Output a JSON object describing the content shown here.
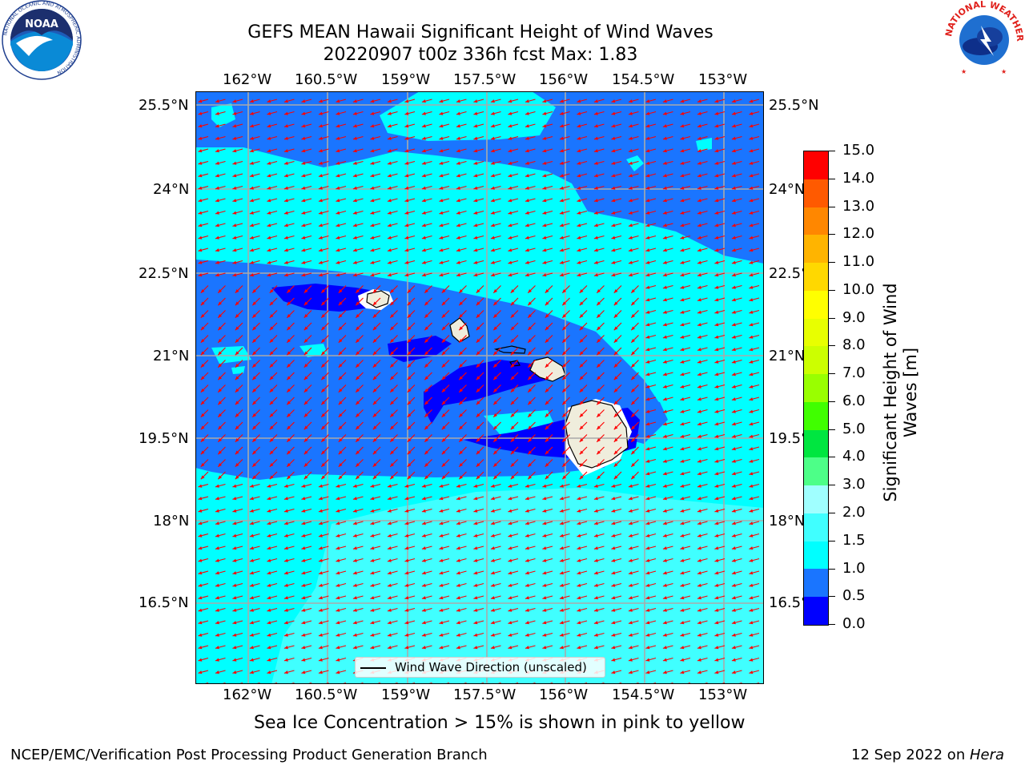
{
  "title": {
    "line1": "GEFS MEAN Hawaii Significant Height of Wind Waves",
    "line2": "20220907 t00z 336h fcst   Max: 1.83"
  },
  "map": {
    "lon_labels": [
      "162°W",
      "160.5°W",
      "159°W",
      "157.5°W",
      "156°W",
      "154.5°W",
      "153°W"
    ],
    "lat_labels": [
      "25.5°N",
      "24°N",
      "22.5°N",
      "21°N",
      "19.5°N",
      "18°N",
      "16.5°N"
    ],
    "legend_label": "Wind Wave Direction (unscaled)",
    "colors": {
      "ocean_bg": "#00ffff",
      "band_1_0": "#1a75ff",
      "band_0_5": "#0000ff",
      "band_2_0": "#40ffff",
      "land": "#efeddc",
      "arrows": "#ff0000"
    }
  },
  "colorbar": {
    "title": "Significant Height of Wind Waves [m]",
    "title_line1": "Significant Height of Wind",
    "title_line2": "Waves [m]",
    "ticks": [
      "15.0",
      "14.0",
      "13.0",
      "12.0",
      "11.0",
      "10.0",
      "9.0",
      "8.0",
      "7.0",
      "6.0",
      "5.0",
      "4.0",
      "3.0",
      "2.0",
      "1.5",
      "1.0",
      "0.5",
      "0.0"
    ],
    "colors": [
      "#ff0000",
      "#ff2d00",
      "#ff5a00",
      "#ff8700",
      "#ffb400",
      "#ffd800",
      "#ffff00",
      "#e8ff00",
      "#ccff00",
      "#99ff00",
      "#40ff00",
      "#00e640",
      "#4dff88",
      "#a0ffff",
      "#40ffff",
      "#00ffff",
      "#1a75ff",
      "#0000ff"
    ]
  },
  "caption": "Sea Ice Concentration > 15% is shown in pink to yellow",
  "footer": {
    "left": "NCEP/EMC/Verification Post Processing Product Generation Branch",
    "right_date": "12 Sep 2022 on ",
    "right_machine": "Hera"
  },
  "logos": {
    "noaa": "NOAA",
    "noaa_ring_text": "NATIONAL OCEANIC AND ATMOSPHERIC ADMINISTRATION",
    "noaa_ring_bottom": "U.S. DEPARTMENT OF COMMERCE",
    "nws_ring_text": "NATIONAL WEATHER SERVICE"
  }
}
